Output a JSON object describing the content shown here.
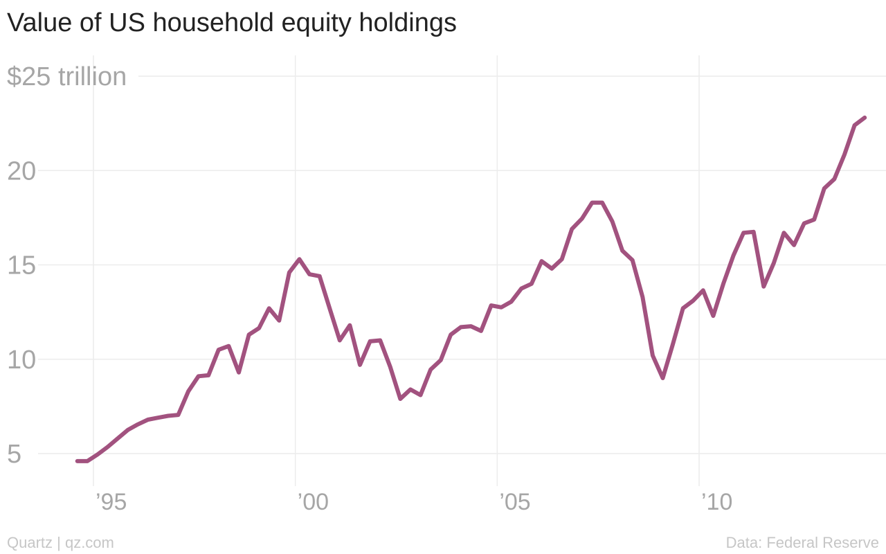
{
  "title": "Value of US household equity holdings",
  "credit": "Quartz | qz.com",
  "source": "Data: Federal Reserve",
  "colors": {
    "line": "#a2527f",
    "grid": "#ececec",
    "tick_text": "#a6a6a6",
    "title": "#222222",
    "footer": "#c6c6c6"
  },
  "chart_data": {
    "type": "line",
    "title": "Value of US household equity holdings",
    "xlabel": "",
    "ylabel": "$ trillion",
    "xlim": [
      1994.65,
      2014.2
    ],
    "ylim": [
      3.35,
      25
    ],
    "y_ticks": [
      {
        "value": 25,
        "label": "$25 trillion"
      },
      {
        "value": 20,
        "label": "20"
      },
      {
        "value": 15,
        "label": "15"
      },
      {
        "value": 10,
        "label": "10"
      },
      {
        "value": 5,
        "label": "5"
      }
    ],
    "x_ticks": [
      {
        "value": 1995,
        "label": "’95"
      },
      {
        "value": 2000,
        "label": "’00"
      },
      {
        "value": 2005,
        "label": "’05"
      },
      {
        "value": 2010,
        "label": "’10"
      }
    ],
    "grid": true,
    "legend": "none",
    "series": [
      {
        "x": [
          1994.6,
          1994.85,
          1995.1,
          1995.35,
          1995.6,
          1995.85,
          1996.1,
          1996.35,
          1996.6,
          1996.85,
          1997.1,
          1997.35,
          1997.6,
          1997.85,
          1998.1,
          1998.35,
          1998.6,
          1998.85,
          1999.1,
          1999.35,
          1999.6,
          1999.85,
          2000.1,
          2000.35,
          2000.6,
          2000.85,
          2001.1,
          2001.35,
          2001.6,
          2001.85,
          2002.1,
          2002.35,
          2002.6,
          2002.85,
          2003.1,
          2003.35,
          2003.6,
          2003.85,
          2004.1,
          2004.35,
          2004.6,
          2004.85,
          2005.1,
          2005.35,
          2005.6,
          2005.85,
          2006.1,
          2006.35,
          2006.6,
          2006.85,
          2007.1,
          2007.35,
          2007.6,
          2007.85,
          2008.1,
          2008.35,
          2008.6,
          2008.85,
          2009.1,
          2009.35,
          2009.6,
          2009.85,
          2010.1,
          2010.35,
          2010.6,
          2010.85,
          2011.1,
          2011.35,
          2011.6,
          2011.85,
          2012.1,
          2012.35,
          2012.6,
          2012.85,
          2013.1,
          2013.35,
          2013.6,
          2013.85,
          2014.1
        ],
        "values": [
          4.6,
          4.6,
          4.95,
          5.35,
          5.8,
          6.25,
          6.55,
          6.8,
          6.9,
          7.0,
          7.05,
          8.3,
          9.1,
          9.15,
          10.5,
          10.7,
          9.3,
          11.3,
          11.65,
          12.7,
          12.05,
          14.6,
          15.3,
          14.5,
          14.4,
          12.7,
          11.0,
          11.8,
          9.7,
          10.95,
          11.0,
          9.6,
          7.9,
          8.4,
          8.1,
          9.45,
          9.95,
          11.3,
          11.7,
          11.75,
          11.5,
          12.85,
          12.75,
          13.05,
          13.75,
          14.0,
          15.2,
          14.8,
          15.3,
          16.9,
          17.45,
          18.3,
          18.3,
          17.3,
          15.75,
          15.25,
          13.3,
          10.2,
          9.0,
          10.8,
          12.7,
          13.1,
          13.65,
          12.3,
          14.0,
          15.5,
          16.7,
          16.75,
          13.85,
          15.1,
          16.7,
          16.05,
          17.2,
          17.4,
          19.05,
          19.55,
          20.85,
          22.4,
          22.8
        ]
      }
    ]
  }
}
